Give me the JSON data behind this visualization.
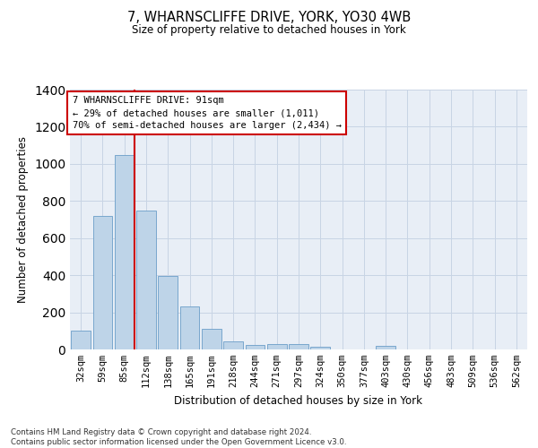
{
  "title": "7, WHARNSCLIFFE DRIVE, YORK, YO30 4WB",
  "subtitle": "Size of property relative to detached houses in York",
  "xlabel": "Distribution of detached houses by size in York",
  "ylabel": "Number of detached properties",
  "categories": [
    "32sqm",
    "59sqm",
    "85sqm",
    "112sqm",
    "138sqm",
    "165sqm",
    "191sqm",
    "218sqm",
    "244sqm",
    "271sqm",
    "297sqm",
    "324sqm",
    "350sqm",
    "377sqm",
    "403sqm",
    "430sqm",
    "456sqm",
    "483sqm",
    "509sqm",
    "536sqm",
    "562sqm"
  ],
  "values": [
    100,
    720,
    1050,
    750,
    395,
    230,
    110,
    45,
    25,
    28,
    27,
    15,
    0,
    0,
    20,
    0,
    0,
    0,
    0,
    0,
    0
  ],
  "bar_color": "#bed4e8",
  "bar_edge_color": "#6b9ec8",
  "highlight_index": 2,
  "highlight_color": "#cc0000",
  "property_label": "7 WHARNSCLIFFE DRIVE: 91sqm",
  "annotation_line1": "← 29% of detached houses are smaller (1,011)",
  "annotation_line2": "70% of semi-detached houses are larger (2,434) →",
  "annotation_bg": "#ffffff",
  "annotation_edge": "#cc0000",
  "ylim_max": 1400,
  "yticks": [
    0,
    200,
    400,
    600,
    800,
    1000,
    1200,
    1400
  ],
  "grid_color": "#c8d4e4",
  "plot_bg": "#e8eef6",
  "title_fontsize": 10.5,
  "subtitle_fontsize": 8.5,
  "footer1": "Contains HM Land Registry data © Crown copyright and database right 2024.",
  "footer2": "Contains public sector information licensed under the Open Government Licence v3.0."
}
